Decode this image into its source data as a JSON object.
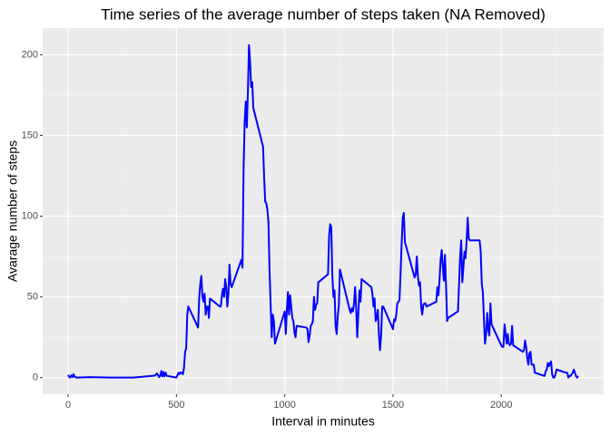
{
  "chart_data": {
    "type": "line",
    "title": "Time series of the average number of steps taken (NA Removed)",
    "xlabel": "Interval in minutes",
    "ylabel": "Avarage number of steps",
    "x": [
      0,
      5,
      10,
      15,
      20,
      25,
      30,
      40,
      55,
      100,
      200,
      300,
      400,
      410,
      420,
      425,
      430,
      435,
      440,
      445,
      450,
      455,
      500,
      505,
      510,
      515,
      520,
      525,
      530,
      535,
      540,
      545,
      550,
      555,
      600,
      605,
      610,
      615,
      620,
      625,
      630,
      635,
      640,
      645,
      650,
      655,
      700,
      705,
      710,
      715,
      720,
      725,
      730,
      735,
      740,
      745,
      750,
      755,
      800,
      805,
      810,
      815,
      820,
      825,
      830,
      835,
      840,
      845,
      850,
      855,
      900,
      905,
      910,
      915,
      920,
      925,
      930,
      935,
      940,
      945,
      950,
      955,
      1000,
      1005,
      1010,
      1015,
      1020,
      1025,
      1030,
      1035,
      1040,
      1045,
      1050,
      1055,
      1100,
      1105,
      1110,
      1115,
      1120,
      1125,
      1130,
      1135,
      1140,
      1145,
      1150,
      1155,
      1200,
      1205,
      1210,
      1215,
      1220,
      1225,
      1230,
      1235,
      1240,
      1245,
      1250,
      1255,
      1300,
      1305,
      1310,
      1315,
      1320,
      1325,
      1330,
      1335,
      1340,
      1345,
      1350,
      1355,
      1400,
      1405,
      1410,
      1415,
      1420,
      1425,
      1430,
      1435,
      1440,
      1445,
      1450,
      1455,
      1500,
      1505,
      1510,
      1515,
      1520,
      1525,
      1530,
      1535,
      1540,
      1545,
      1550,
      1555,
      1600,
      1605,
      1610,
      1615,
      1620,
      1625,
      1630,
      1635,
      1640,
      1645,
      1650,
      1655,
      1700,
      1705,
      1710,
      1715,
      1720,
      1725,
      1730,
      1735,
      1740,
      1745,
      1750,
      1755,
      1800,
      1805,
      1810,
      1815,
      1820,
      1825,
      1830,
      1835,
      1840,
      1845,
      1850,
      1855,
      1900,
      1905,
      1910,
      1915,
      1920,
      1925,
      1930,
      1935,
      1940,
      1945,
      1950,
      1955,
      2000,
      2005,
      2010,
      2015,
      2020,
      2025,
      2030,
      2035,
      2040,
      2045,
      2050,
      2055,
      2100,
      2105,
      2110,
      2115,
      2120,
      2125,
      2130,
      2135,
      2140,
      2145,
      2150,
      2155,
      2200,
      2205,
      2210,
      2215,
      2220,
      2225,
      2230,
      2235,
      2240,
      2245,
      2250,
      2255,
      2300,
      2305,
      2310,
      2315,
      2320,
      2325,
      2330,
      2335,
      2340,
      2345,
      2350,
      2355
    ],
    "series": [
      {
        "name": "steps",
        "color": "#0000FF",
        "values": [
          1.7,
          0.3,
          0.1,
          1.5,
          0.3,
          2.1,
          0.5,
          0,
          0.1,
          0.3,
          0,
          0,
          1.2,
          2.6,
          0.3,
          1.1,
          4.1,
          0.7,
          3.5,
          0.8,
          3.1,
          1.1,
          0,
          1.6,
          3,
          2.2,
          3.3,
          3,
          2.1,
          6,
          16,
          18,
          39,
          44,
          31,
          49,
          58,
          63,
          50,
          47,
          52,
          39,
          44,
          44,
          37,
          49,
          44,
          44,
          51,
          55,
          50,
          61,
          56,
          44,
          52,
          70,
          58,
          56,
          73,
          68,
          129,
          158,
          171,
          155,
          177,
          206,
          196,
          180,
          183,
          167,
          143,
          124,
          109,
          108,
          104,
          96,
          66,
          45,
          25,
          39,
          35,
          21,
          41,
          27,
          42,
          53,
          39,
          51,
          44,
          37,
          35,
          28,
          25,
          32,
          31,
          30,
          22,
          26,
          32,
          33,
          35,
          50,
          42,
          45,
          46,
          59,
          64,
          88,
          95,
          93,
          63,
          50,
          54,
          32,
          27,
          38,
          45,
          67,
          42,
          40,
          43,
          41,
          46,
          56,
          43,
          25,
          40,
          54,
          47,
          61,
          56,
          52,
          44,
          49,
          35,
          37,
          42,
          27,
          17,
          26,
          44,
          44,
          30,
          36,
          35,
          39,
          46,
          47,
          48,
          65,
          83,
          99,
          102,
          84,
          62,
          64,
          75,
          63,
          57,
          59,
          44,
          39,
          45,
          46,
          46,
          44,
          47,
          56,
          51,
          61,
          73,
          79,
          69,
          60,
          76,
          57,
          35,
          37,
          41,
          58,
          75,
          85,
          59,
          68,
          78,
          74,
          85,
          99,
          86,
          85,
          85,
          78,
          58,
          53,
          36,
          21,
          27,
          40,
          30,
          26,
          46,
          33,
          20,
          19,
          19,
          33,
          27,
          21,
          27,
          21,
          20,
          21,
          32,
          20,
          16,
          17,
          23,
          19,
          12,
          8,
          15,
          16,
          8,
          8,
          8,
          3,
          1,
          4,
          5,
          9,
          7,
          9,
          10,
          2,
          0,
          0,
          2,
          5,
          3,
          3,
          0,
          1,
          1,
          2,
          3,
          5,
          3,
          1,
          0,
          1
        ]
      }
    ],
    "xlim": [
      -117.75,
      2472.75
    ],
    "xticks": [
      0,
      500,
      1000,
      1500,
      2000
    ],
    "ylim": [
      -10.3,
      216.5
    ],
    "yticks": [
      0,
      50,
      100,
      150,
      200
    ],
    "grid": true
  }
}
